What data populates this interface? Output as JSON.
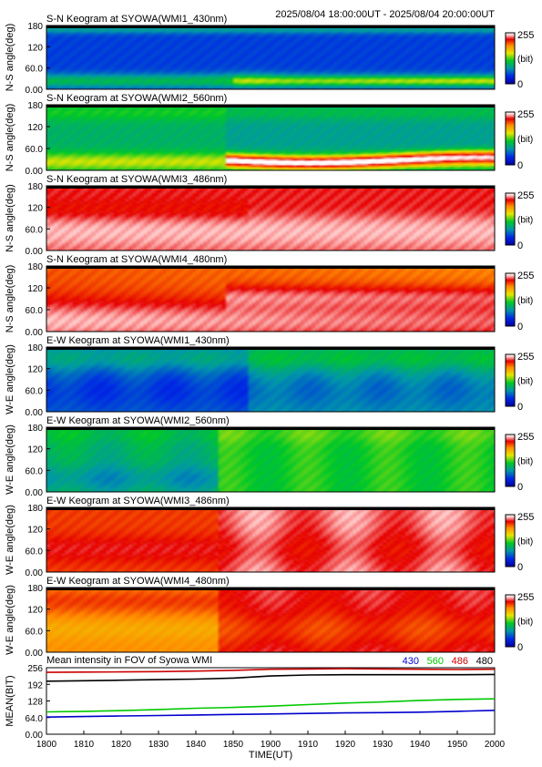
{
  "header": {
    "time_range": "2025/08/04 18:00:00UT - 2025/08/04 20:00:00UT"
  },
  "colorbar": {
    "max_label": "255",
    "min_label": "0",
    "unit_label": "(bit)"
  },
  "colors": {
    "series_430": "#0000cc",
    "series_560": "#00c800",
    "series_486": "#cc0000",
    "series_480": "#000000"
  },
  "chart_data": [
    {
      "type": "heatmap",
      "title": "S-N Keogram at SYOWA(WMI1_430nm)",
      "ylabel": "N-S angle(deg)",
      "y_ticks": [
        "0.00",
        "60.0",
        "120",
        "180"
      ],
      "ylim": [
        0,
        180
      ],
      "colormap": "rainbow",
      "value_range": [
        0,
        255
      ]
    },
    {
      "type": "heatmap",
      "title": "S-N Keogram at SYOWA(WMI2_560nm)",
      "ylabel": "N-S angle(deg)",
      "y_ticks": [
        "0.00",
        "60.0",
        "120",
        "180"
      ],
      "ylim": [
        0,
        180
      ],
      "colormap": "rainbow",
      "value_range": [
        0,
        255
      ]
    },
    {
      "type": "heatmap",
      "title": "S-N Keogram at SYOWA(WMI3_486nm)",
      "ylabel": "N-S angle(deg)",
      "y_ticks": [
        "0.00",
        "60.0",
        "120",
        "180"
      ],
      "ylim": [
        0,
        180
      ],
      "colormap": "rainbow",
      "value_range": [
        0,
        255
      ]
    },
    {
      "type": "heatmap",
      "title": "S-N Keogram at SYOWA(WMI4_480nm)",
      "ylabel": "N-S angle(deg)",
      "y_ticks": [
        "0.00",
        "60.0",
        "120",
        "180"
      ],
      "ylim": [
        0,
        180
      ],
      "colormap": "rainbow",
      "value_range": [
        0,
        255
      ]
    },
    {
      "type": "heatmap",
      "title": "E-W Keogram at SYOWA(WMI1_430nm)",
      "ylabel": "W-E angle(deg)",
      "y_ticks": [
        "0.00",
        "60.0",
        "120",
        "180"
      ],
      "ylim": [
        0,
        180
      ],
      "colormap": "rainbow",
      "value_range": [
        0,
        255
      ]
    },
    {
      "type": "heatmap",
      "title": "E-W Keogram at SYOWA(WMI2_560nm)",
      "ylabel": "W-E angle(deg)",
      "y_ticks": [
        "0.00",
        "60.0",
        "120",
        "180"
      ],
      "ylim": [
        0,
        180
      ],
      "colormap": "rainbow",
      "value_range": [
        0,
        255
      ]
    },
    {
      "type": "heatmap",
      "title": "E-W Keogram at SYOWA(WMI3_486nm)",
      "ylabel": "W-E angle(deg)",
      "y_ticks": [
        "0.00",
        "60.0",
        "120",
        "180"
      ],
      "ylim": [
        0,
        180
      ],
      "colormap": "rainbow",
      "value_range": [
        0,
        255
      ]
    },
    {
      "type": "heatmap",
      "title": "E-W Keogram at SYOWA(WMI4_480nm)",
      "ylabel": "W-E angle(deg)",
      "y_ticks": [
        "0.00",
        "60.0",
        "120",
        "180"
      ],
      "ylim": [
        0,
        180
      ],
      "colormap": "rainbow",
      "value_range": [
        0,
        255
      ]
    },
    {
      "type": "line",
      "title": "Mean intensity in FOV of Syowa WMI",
      "xlabel": "TIME(UT)",
      "ylabel": "MEAN(BIT)",
      "x_ticks": [
        "1800",
        "1810",
        "1820",
        "1830",
        "1840",
        "1850",
        "1900",
        "1910",
        "1920",
        "1930",
        "1940",
        "1950",
        "2000"
      ],
      "y_ticks": [
        "0.00",
        "64.0",
        "128",
        "192",
        "256"
      ],
      "ylim": [
        0,
        256
      ],
      "legend_position": "top-right",
      "x": [
        0,
        10,
        20,
        30,
        40,
        50,
        60,
        70,
        80,
        90,
        100,
        110,
        120
      ],
      "series": [
        {
          "name": "430",
          "color": "#0000cc",
          "values": [
            66,
            68,
            70,
            72,
            74,
            76,
            78,
            80,
            82,
            83,
            85,
            88,
            92
          ]
        },
        {
          "name": "560",
          "color": "#00c800",
          "values": [
            86,
            88,
            91,
            95,
            100,
            103,
            108,
            114,
            120,
            124,
            130,
            134,
            136
          ]
        },
        {
          "name": "486",
          "color": "#cc0000",
          "values": [
            238,
            239,
            240,
            241,
            243,
            246,
            250,
            251,
            252,
            251,
            250,
            249,
            250
          ]
        },
        {
          "name": "480",
          "color": "#000000",
          "values": [
            204,
            206,
            208,
            210,
            212,
            216,
            224,
            228,
            229,
            229,
            229,
            229,
            230
          ]
        }
      ]
    }
  ]
}
